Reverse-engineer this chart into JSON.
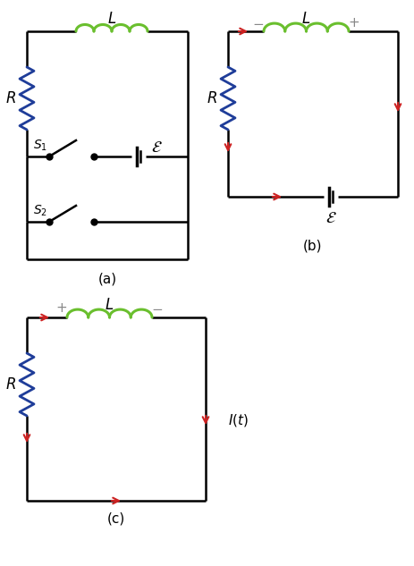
{
  "fig_width": 4.64,
  "fig_height": 6.33,
  "bg_color": "#ffffff",
  "wire_color": "#000000",
  "resistor_color": "#1f3d99",
  "inductor_color": "#6abf2e",
  "arrow_color": "#cc2222",
  "text_color": "#000000",
  "pm_color": "#888888",
  "panel_a_label": "(a)",
  "panel_b_label": "(b)",
  "panel_c_label": "(c)"
}
